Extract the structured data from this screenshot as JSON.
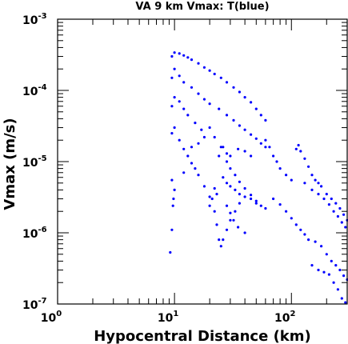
{
  "chart_data": {
    "type": "scatter",
    "title": "VA 9 km Vmax: T(blue)",
    "xlabel": "Hypocentral Distance (km)",
    "ylabel": "Vmax (m/s)",
    "x_scale": "log",
    "y_scale": "log",
    "xlim": [
      1,
      300
    ],
    "ylim": [
      1e-07,
      0.001
    ],
    "grid": false,
    "legend": "none",
    "x_ticks": [
      {
        "value": 1,
        "mantissa": "10",
        "exponent": "0"
      },
      {
        "value": 10,
        "mantissa": "10",
        "exponent": "1"
      },
      {
        "value": 100,
        "mantissa": "10",
        "exponent": "2"
      }
    ],
    "y_ticks": [
      {
        "value": 0.001,
        "mantissa": "10",
        "exponent": "-3"
      },
      {
        "value": 0.0001,
        "mantissa": "10",
        "exponent": "-4"
      },
      {
        "value": 1e-05,
        "mantissa": "10",
        "exponent": "-5"
      },
      {
        "value": 1e-06,
        "mantissa": "10",
        "exponent": "-6"
      },
      {
        "value": 1e-07,
        "mantissa": "10",
        "exponent": "-7"
      }
    ],
    "series": [
      {
        "color": "#0000ff",
        "marker": "dot",
        "points": [
          [
            9.5,
            0.0003
          ],
          [
            10,
            0.00034
          ],
          [
            11,
            0.00033
          ],
          [
            12,
            0.00031
          ],
          [
            13,
            0.00029
          ],
          [
            14,
            0.00027
          ],
          [
            16,
            0.00024
          ],
          [
            18,
            0.00021
          ],
          [
            20,
            0.00019
          ],
          [
            22,
            0.00017
          ],
          [
            25,
            0.00015
          ],
          [
            28,
            0.00013
          ],
          [
            32,
            0.00011
          ],
          [
            36,
            9.5e-05
          ],
          [
            40,
            8e-05
          ],
          [
            45,
            6.8e-05
          ],
          [
            50,
            5.5e-05
          ],
          [
            55,
            4.5e-05
          ],
          [
            60,
            3.8e-05
          ],
          [
            9.5,
            0.00015
          ],
          [
            10,
            0.0002
          ],
          [
            11,
            0.00016
          ],
          [
            12,
            0.00013
          ],
          [
            14,
            0.00011
          ],
          [
            16,
            9e-05
          ],
          [
            18,
            7.5e-05
          ],
          [
            20,
            6.5e-05
          ],
          [
            24,
            5.5e-05
          ],
          [
            28,
            4.5e-05
          ],
          [
            32,
            3.8e-05
          ],
          [
            36,
            3.2e-05
          ],
          [
            40,
            2.8e-05
          ],
          [
            45,
            2.4e-05
          ],
          [
            50,
            2.1e-05
          ],
          [
            55,
            1.8e-05
          ],
          [
            60,
            1.6e-05
          ],
          [
            9.5,
            6e-05
          ],
          [
            10,
            8e-05
          ],
          [
            11,
            7e-05
          ],
          [
            12,
            5.5e-05
          ],
          [
            13,
            4.5e-05
          ],
          [
            15,
            3.5e-05
          ],
          [
            17,
            2.8e-05
          ],
          [
            20,
            3e-05
          ],
          [
            22,
            2.2e-05
          ],
          [
            25,
            1.6e-05
          ],
          [
            28,
            1.3e-05
          ],
          [
            30,
            1.2e-05
          ],
          [
            35,
            1.5e-05
          ],
          [
            40,
            1.4e-05
          ],
          [
            45,
            1.2e-05
          ],
          [
            9.5,
            2.5e-05
          ],
          [
            10,
            3e-05
          ],
          [
            11,
            2e-05
          ],
          [
            12,
            1.5e-05
          ],
          [
            13,
            1.2e-05
          ],
          [
            14,
            9.5e-06
          ],
          [
            15,
            8e-06
          ],
          [
            16,
            6.5e-06
          ],
          [
            18,
            4.5e-06
          ],
          [
            20,
            3.2e-06
          ],
          [
            22,
            2e-06
          ],
          [
            23,
            1.3e-06
          ],
          [
            24,
            8e-07
          ],
          [
            25,
            6.5e-07
          ],
          [
            26,
            8e-07
          ],
          [
            28,
            1.1e-06
          ],
          [
            30,
            1.5e-06
          ],
          [
            33,
            2e-06
          ],
          [
            36,
            2.6e-06
          ],
          [
            40,
            3.2e-06
          ],
          [
            45,
            3e-06
          ],
          [
            50,
            2.6e-06
          ],
          [
            55,
            2.4e-06
          ],
          [
            60,
            2.2e-06
          ],
          [
            24,
            1.2e-05
          ],
          [
            26,
            1.6e-05
          ],
          [
            28,
            1e-05
          ],
          [
            30,
            8e-06
          ],
          [
            33,
            6.5e-06
          ],
          [
            36,
            5.2e-06
          ],
          [
            40,
            4.2e-06
          ],
          [
            45,
            3.4e-06
          ],
          [
            50,
            2.8e-06
          ],
          [
            28,
            2.4e-06
          ],
          [
            30,
            1.9e-06
          ],
          [
            32,
            1.5e-06
          ],
          [
            35,
            1.2e-06
          ],
          [
            40,
            1e-06
          ],
          [
            26,
            6e-06
          ],
          [
            28,
            5e-06
          ],
          [
            30,
            4.5e-06
          ],
          [
            33,
            4e-06
          ],
          [
            36,
            3.5e-06
          ],
          [
            9.5,
            5.5e-06
          ],
          [
            9.8,
            3e-06
          ],
          [
            9.7,
            2.4e-06
          ],
          [
            10,
            4e-06
          ],
          [
            9.5,
            1.1e-06
          ],
          [
            9.2,
            5.3e-07
          ],
          [
            12,
            7e-06
          ],
          [
            14,
            1.6e-05
          ],
          [
            16,
            1.8e-05
          ],
          [
            18,
            2.2e-05
          ],
          [
            20,
            2.4e-06
          ],
          [
            21,
            3e-06
          ],
          [
            22,
            4.2e-06
          ],
          [
            23,
            3.5e-06
          ],
          [
            60,
            2e-05
          ],
          [
            65,
            1.6e-05
          ],
          [
            70,
            1.2e-05
          ],
          [
            75,
            1e-05
          ],
          [
            80,
            8e-06
          ],
          [
            90,
            6.5e-06
          ],
          [
            100,
            5.5e-06
          ],
          [
            110,
            1.5e-05
          ],
          [
            115,
            1.7e-05
          ],
          [
            120,
            1.4e-05
          ],
          [
            130,
            1.1e-05
          ],
          [
            140,
            8.5e-06
          ],
          [
            150,
            6.5e-06
          ],
          [
            160,
            5.5e-06
          ],
          [
            170,
            5e-06
          ],
          [
            180,
            4.5e-06
          ],
          [
            200,
            3.5e-06
          ],
          [
            220,
            3e-06
          ],
          [
            240,
            2.6e-06
          ],
          [
            260,
            2.2e-06
          ],
          [
            280,
            1.8e-06
          ],
          [
            300,
            1.5e-06
          ],
          [
            70,
            3e-06
          ],
          [
            80,
            2.5e-06
          ],
          [
            90,
            2e-06
          ],
          [
            100,
            1.6e-06
          ],
          [
            110,
            1.3e-06
          ],
          [
            120,
            1.1e-06
          ],
          [
            130,
            9.5e-07
          ],
          [
            140,
            8e-07
          ],
          [
            160,
            7.5e-07
          ],
          [
            180,
            6.5e-07
          ],
          [
            200,
            5e-07
          ],
          [
            220,
            4e-07
          ],
          [
            240,
            3.5e-07
          ],
          [
            260,
            3e-07
          ],
          [
            280,
            2.5e-07
          ],
          [
            300,
            2.2e-07
          ],
          [
            230,
            2e-07
          ],
          [
            250,
            1.6e-07
          ],
          [
            270,
            1.2e-07
          ],
          [
            290,
            1.05e-07
          ],
          [
            150,
            3.5e-07
          ],
          [
            170,
            3e-07
          ],
          [
            190,
            2.8e-07
          ],
          [
            210,
            2.6e-07
          ],
          [
            130,
            5e-06
          ],
          [
            150,
            4e-06
          ],
          [
            170,
            3.5e-06
          ],
          [
            190,
            3e-06
          ],
          [
            210,
            2.5e-06
          ],
          [
            230,
            2e-06
          ],
          [
            250,
            1.7e-06
          ],
          [
            270,
            1.4e-06
          ],
          [
            290,
            1.2e-06
          ]
        ]
      }
    ]
  }
}
